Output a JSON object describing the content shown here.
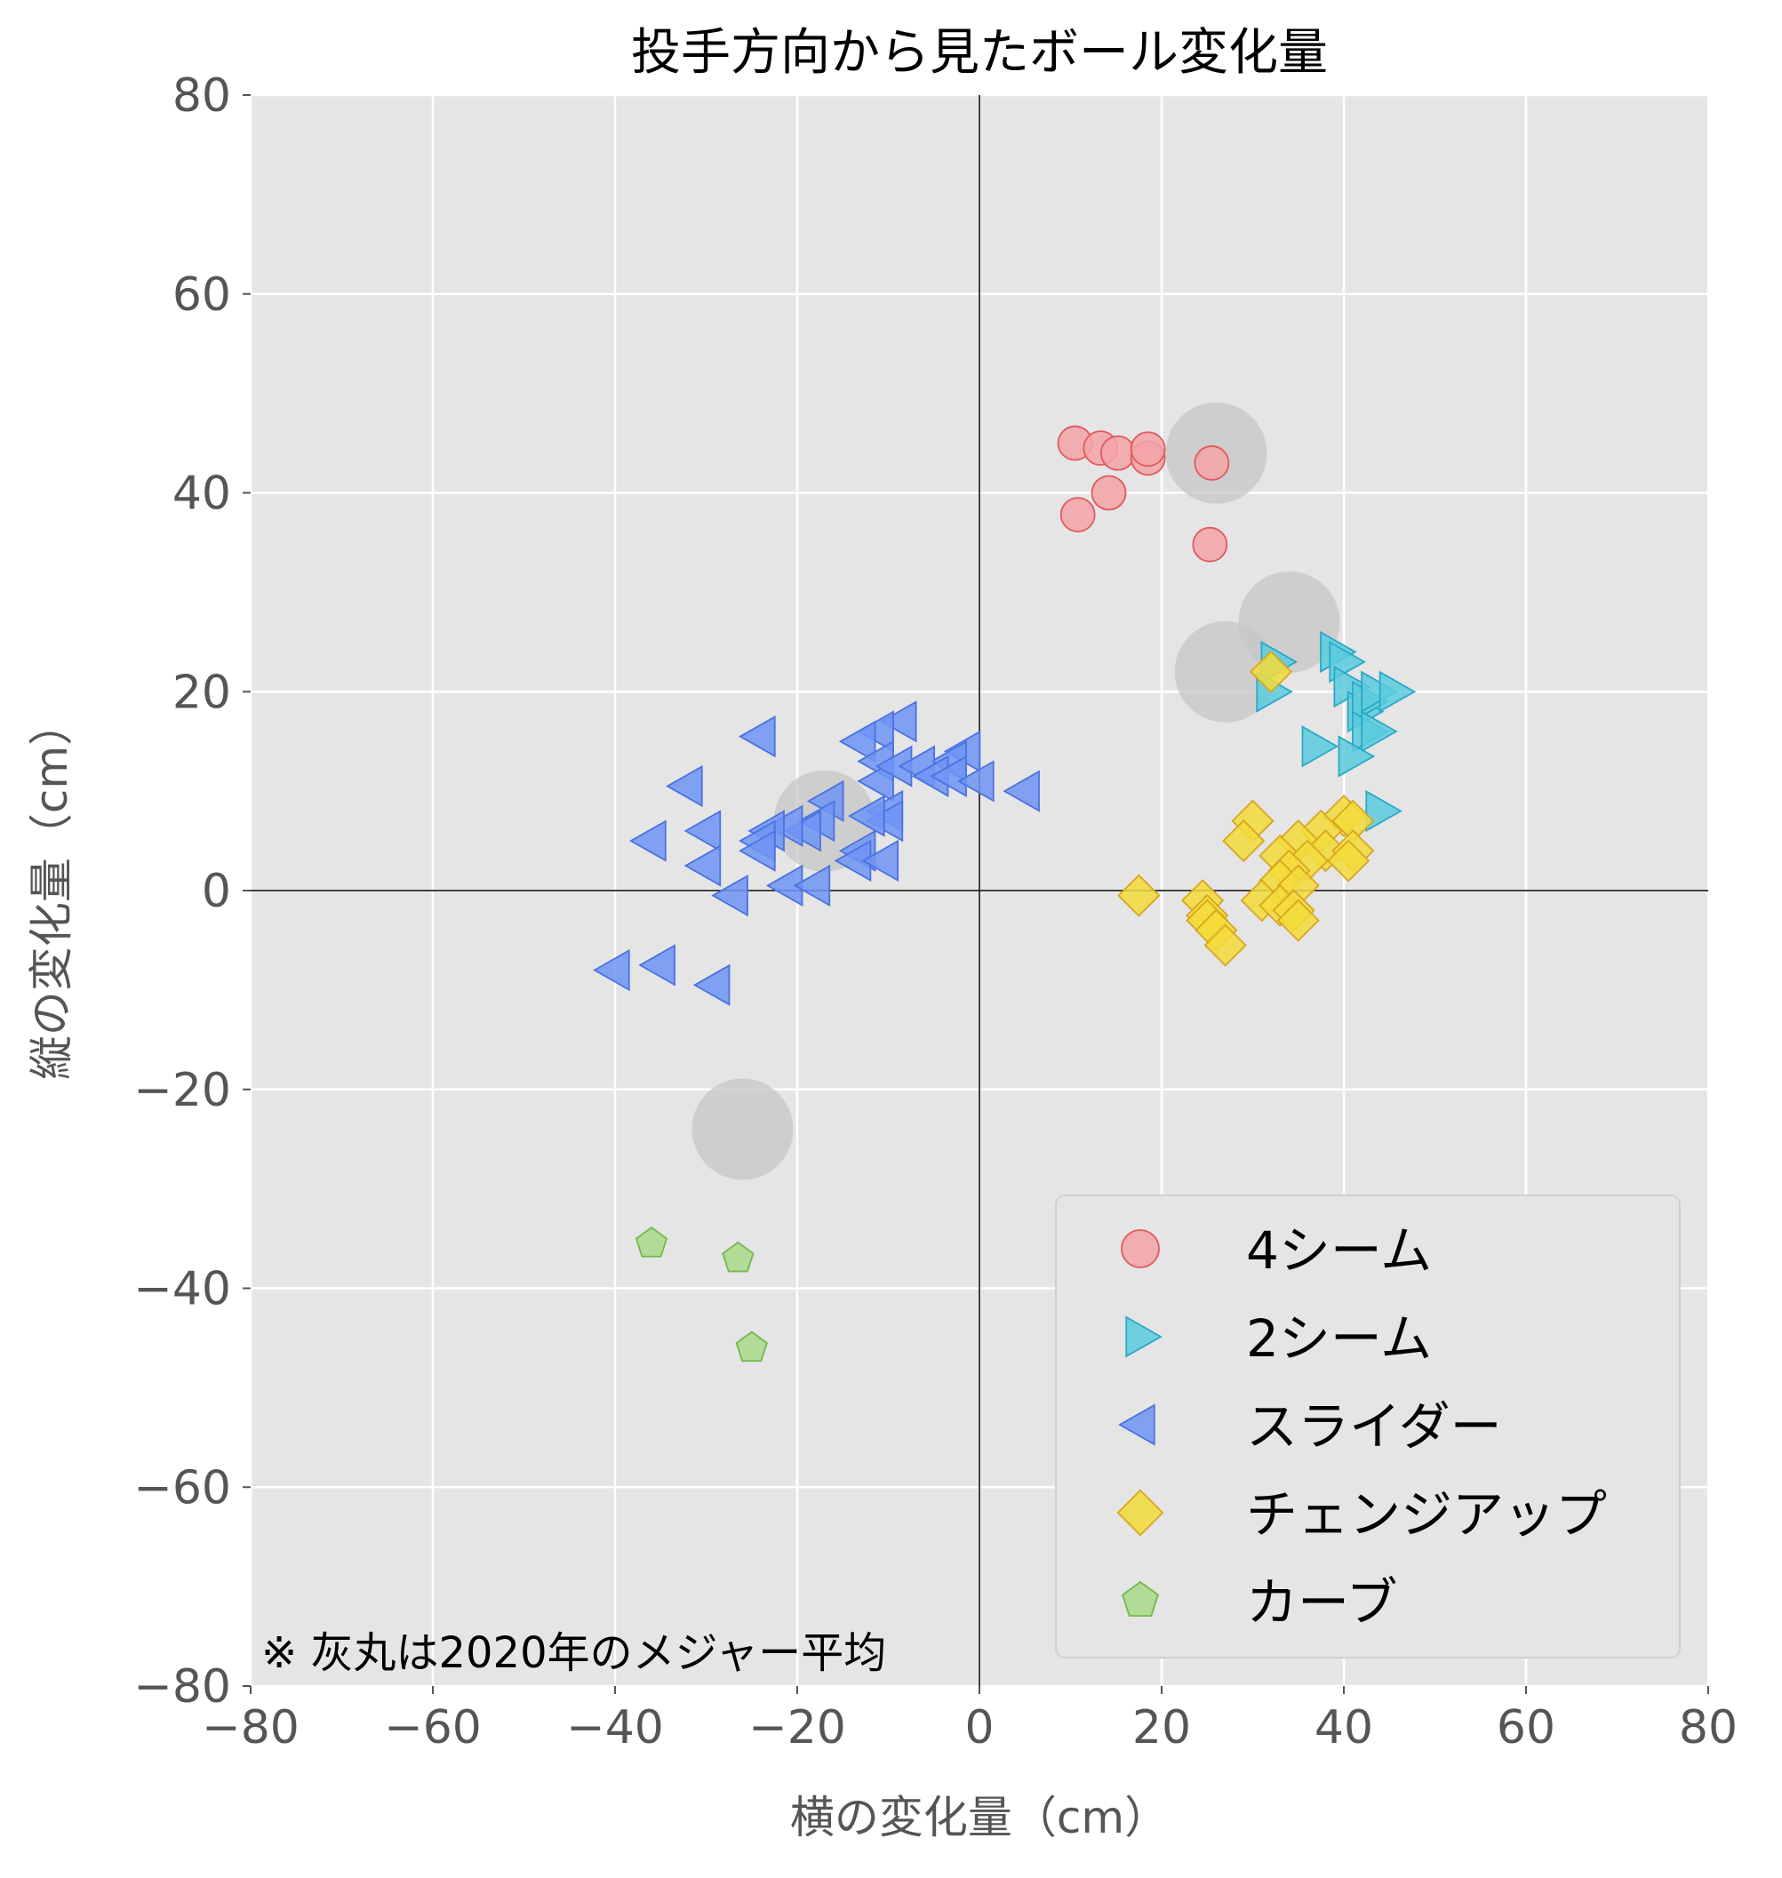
{
  "chart_data": {
    "type": "scatter",
    "title": "投手方向から見たボール変化量",
    "xlabel": "横の変化量（cm）",
    "ylabel": "縦の変化量（cm）",
    "xlim": [
      -80,
      80
    ],
    "ylim": [
      -80,
      80
    ],
    "xticks": [
      -80,
      -60,
      -40,
      -20,
      0,
      20,
      40,
      60,
      80
    ],
    "yticks": [
      -80,
      -60,
      -40,
      -20,
      0,
      20,
      40,
      60,
      80
    ],
    "grid": true,
    "legend_position": "bottom-right",
    "annotation": "※ 灰丸は2020年のメジャー平均",
    "series": [
      {
        "name": "4シーム",
        "marker": "circle",
        "color": "#f4a3a8",
        "edge": "#e05a5e",
        "points": [
          [
            10.5,
            45
          ],
          [
            13.3,
            44.5
          ],
          [
            15.2,
            44
          ],
          [
            18.5,
            43.5
          ],
          [
            18.5,
            44.4
          ],
          [
            10.8,
            37.8
          ],
          [
            14.2,
            40
          ],
          [
            25.5,
            43
          ],
          [
            25.3,
            34.8
          ]
        ]
      },
      {
        "name": "2シーム",
        "marker": "triangle-right",
        "color": "#5bcbdd",
        "edge": "#2aa8c5",
        "points": [
          [
            32.5,
            23
          ],
          [
            32,
            20
          ],
          [
            39,
            24
          ],
          [
            40,
            23
          ],
          [
            40.5,
            20.5
          ],
          [
            42,
            18
          ],
          [
            42.5,
            19
          ],
          [
            43.5,
            20
          ],
          [
            45.5,
            20
          ],
          [
            42.5,
            16
          ],
          [
            43.5,
            16
          ],
          [
            37,
            14.5
          ],
          [
            41,
            13.5
          ],
          [
            44,
            8
          ]
        ]
      },
      {
        "name": "スライダー",
        "marker": "triangle-left",
        "color": "#6f94f4",
        "edge": "#4b72e0",
        "points": [
          [
            -24,
            15.5
          ],
          [
            -8.5,
            17
          ],
          [
            -11,
            16
          ],
          [
            -13,
            15
          ],
          [
            -11,
            13
          ],
          [
            -1.5,
            14
          ],
          [
            -3,
            13
          ],
          [
            -11,
            11
          ],
          [
            -9,
            12.5
          ],
          [
            -6.5,
            12.5
          ],
          [
            -5,
            11.5
          ],
          [
            -3,
            11.5
          ],
          [
            0,
            11
          ],
          [
            5,
            10
          ],
          [
            -32,
            10.5
          ],
          [
            -16.5,
            9
          ],
          [
            -17.5,
            7
          ],
          [
            -10,
            8
          ],
          [
            -10,
            7
          ],
          [
            -12,
            7.5
          ],
          [
            -19,
            6
          ],
          [
            -21,
            6.5
          ],
          [
            -23,
            6
          ],
          [
            -24,
            5
          ],
          [
            -30,
            6
          ],
          [
            -36,
            5
          ],
          [
            -30,
            2.5
          ],
          [
            -24,
            4
          ],
          [
            -13,
            4
          ],
          [
            -13.5,
            3
          ],
          [
            -10.5,
            3
          ],
          [
            -21,
            0.5
          ],
          [
            -18,
            0.5
          ],
          [
            -27,
            -0.5
          ],
          [
            -40,
            -8
          ],
          [
            -35,
            -7.5
          ],
          [
            -29,
            -9.5
          ]
        ]
      },
      {
        "name": "チェンジアップ",
        "marker": "diamond",
        "color": "#f3dc3a",
        "edge": "#d9a520",
        "points": [
          [
            32,
            22
          ],
          [
            30,
            7
          ],
          [
            29,
            5
          ],
          [
            40,
            7.5
          ],
          [
            41,
            7
          ],
          [
            37.5,
            6
          ],
          [
            35,
            5
          ],
          [
            38,
            4
          ],
          [
            33,
            3.5
          ],
          [
            36,
            3
          ],
          [
            41,
            4
          ],
          [
            40.5,
            3
          ],
          [
            34,
            2
          ],
          [
            33,
            1
          ],
          [
            35,
            0.5
          ],
          [
            17.5,
            -0.5
          ],
          [
            24.5,
            -1
          ],
          [
            31,
            -1
          ],
          [
            33,
            -1.5
          ],
          [
            34.5,
            -2
          ],
          [
            25,
            -2.5
          ],
          [
            25,
            -3
          ],
          [
            35,
            -3
          ],
          [
            26,
            -4
          ],
          [
            27,
            -5.5
          ]
        ]
      },
      {
        "name": "カーブ",
        "marker": "pentagon",
        "color": "#a9d98b",
        "edge": "#72b84a",
        "points": [
          [
            -36,
            -35.5
          ],
          [
            -26.5,
            -37
          ],
          [
            -25,
            -46
          ]
        ]
      }
    ],
    "reference_2020": [
      [
        26,
        44
      ],
      [
        34,
        27
      ],
      [
        27,
        22
      ],
      [
        -17,
        7
      ],
      [
        -26,
        -24
      ]
    ]
  }
}
